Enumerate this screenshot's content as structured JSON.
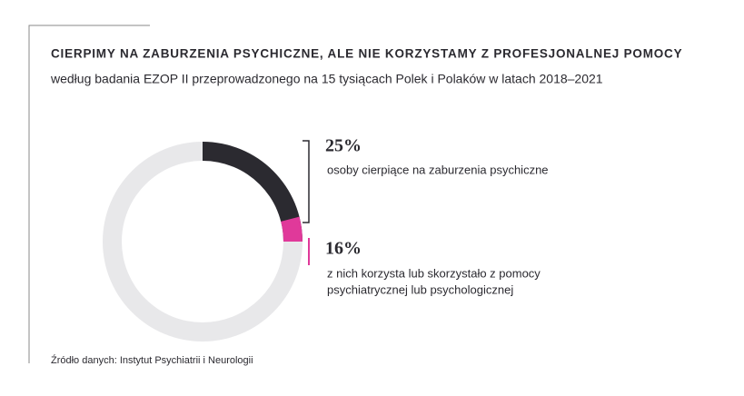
{
  "chart_data": {
    "type": "donut",
    "title": "CIERPIMY NA ZABURZENIA PSYCHICZNE, ALE NIE KORZYSTAMY Z PROFESJONALNEJ POMOCY",
    "subtitle": "według badania EZOP II przeprowadzonego na 15 tysiącach Polek i Polaków w latach 2018–2021",
    "values": [
      25,
      16
    ],
    "value_labels": [
      "25%",
      "16%"
    ],
    "descriptions": [
      [
        "osoby cierpiące na zaburzenia psychiczne"
      ],
      [
        "z  nich korzysta lub skorzystało z pomocy",
        "psychiatrycznej lub psychologicznej"
      ]
    ],
    "colors": [
      "#2b2a30",
      "#e0399a"
    ],
    "rest_color": "#e8e8ea",
    "source": "Źródło danych: Instytut Psychiatrii i Neurologii"
  }
}
